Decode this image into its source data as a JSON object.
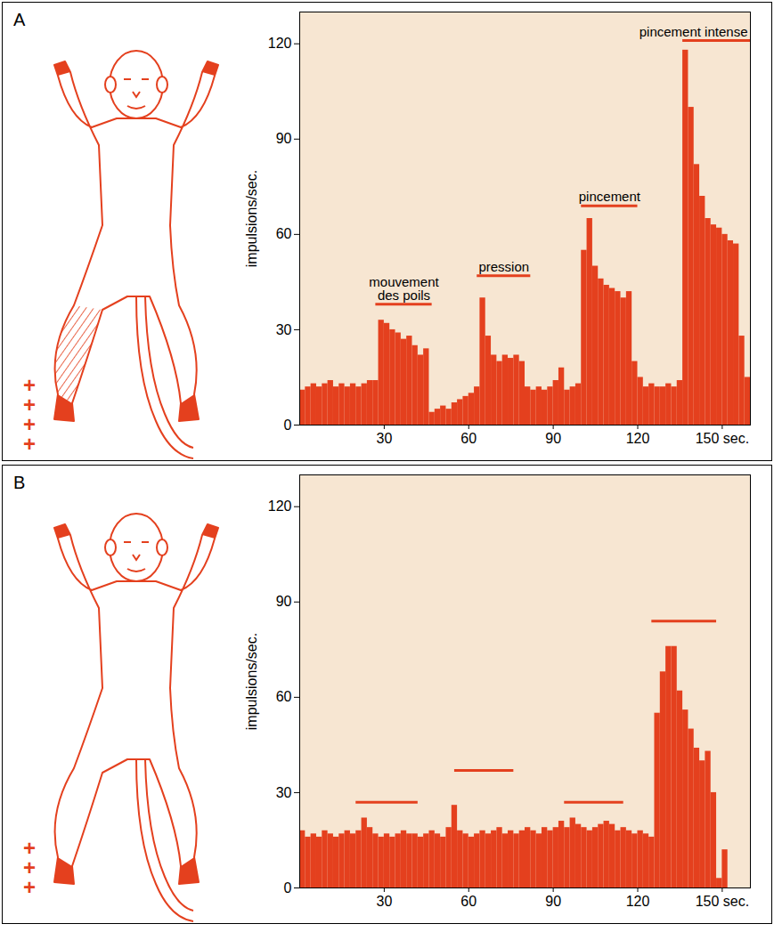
{
  "chart_data": [
    {
      "type": "histogram",
      "title": "A",
      "y_label": "impulsions/sec.",
      "color": "#e4401e",
      "annotations": [
        "+",
        "+",
        "+",
        "+"
      ],
      "xlim": [
        0,
        160
      ],
      "ylim": [
        0,
        130
      ],
      "xticks": [
        30,
        60,
        90,
        120,
        {
          "value": 150,
          "label": "150 sec."
        }
      ],
      "yticks": [
        0,
        30,
        60,
        90,
        120
      ],
      "bins": [
        0,
        2,
        4,
        6,
        8,
        10,
        12,
        14,
        16,
        18,
        20,
        22,
        24,
        26,
        28,
        30,
        32,
        34,
        36,
        38,
        40,
        42,
        44,
        46,
        48,
        50,
        52,
        54,
        56,
        58,
        60,
        62,
        64,
        66,
        68,
        70,
        72,
        74,
        76,
        78,
        80,
        82,
        84,
        86,
        88,
        90,
        92,
        94,
        96,
        98,
        100,
        102,
        104,
        106,
        108,
        110,
        112,
        114,
        116,
        118,
        120,
        122,
        124,
        126,
        128,
        130,
        132,
        134,
        136,
        138,
        140,
        142,
        144,
        146,
        148,
        150,
        152,
        154,
        156,
        158,
        160
      ],
      "values": [
        11,
        12,
        13,
        12,
        13,
        14,
        12,
        13,
        12,
        13,
        12,
        13,
        14,
        14,
        33,
        32,
        30,
        29,
        27,
        28,
        25,
        22,
        24,
        4,
        5,
        6,
        5,
        7,
        8,
        9,
        10,
        12,
        40,
        28,
        22,
        20,
        22,
        21,
        22,
        20,
        12,
        11,
        12,
        11,
        12,
        14,
        18,
        11,
        12,
        13,
        55,
        65,
        50,
        46,
        44,
        43,
        42,
        40,
        42,
        20,
        15,
        12,
        13,
        12,
        12,
        13,
        12,
        14,
        118,
        100,
        82,
        72,
        65,
        63,
        62,
        60,
        58,
        57,
        28,
        15
      ],
      "stimuli": [
        {
          "label": "mouvement\ndes poils",
          "start": 27,
          "end": 47,
          "level": 38
        },
        {
          "label": "pression",
          "start": 63,
          "end": 82,
          "level": 47
        },
        {
          "label": "pincement",
          "start": 100,
          "end": 120,
          "level": 69
        },
        {
          "label": "pincement intense",
          "start": 136,
          "end": 160,
          "level": 121
        }
      ]
    },
    {
      "type": "histogram",
      "title": "B",
      "y_label": "impulsions/sec.",
      "color": "#e4401e",
      "annotations": [
        "+",
        "+",
        "+"
      ],
      "xlim": [
        0,
        160
      ],
      "ylim": [
        0,
        130
      ],
      "xticks": [
        30,
        60,
        90,
        120,
        {
          "value": 150,
          "label": "150 sec."
        }
      ],
      "yticks": [
        0,
        30,
        60,
        90,
        120
      ],
      "bins": [
        0,
        2,
        4,
        6,
        8,
        10,
        12,
        14,
        16,
        18,
        20,
        22,
        24,
        26,
        28,
        30,
        32,
        34,
        36,
        38,
        40,
        42,
        44,
        46,
        48,
        50,
        52,
        54,
        56,
        58,
        60,
        62,
        64,
        66,
        68,
        70,
        72,
        74,
        76,
        78,
        80,
        82,
        84,
        86,
        88,
        90,
        92,
        94,
        96,
        98,
        100,
        102,
        104,
        106,
        108,
        110,
        112,
        114,
        116,
        118,
        120,
        122,
        124,
        126,
        128,
        130,
        132,
        134,
        136,
        138,
        140,
        142,
        144,
        146,
        148,
        150,
        152
      ],
      "values": [
        18,
        16,
        17,
        16,
        18,
        17,
        16,
        17,
        18,
        17,
        18,
        22,
        19,
        17,
        16,
        17,
        16,
        17,
        18,
        17,
        17,
        16,
        17,
        18,
        17,
        16,
        19,
        26,
        18,
        17,
        16,
        17,
        18,
        17,
        18,
        19,
        17,
        18,
        17,
        18,
        19,
        18,
        17,
        19,
        18,
        19,
        21,
        19,
        22,
        20,
        19,
        18,
        19,
        20,
        21,
        20,
        18,
        19,
        18,
        17,
        18,
        17,
        16,
        55,
        68,
        76,
        76,
        62,
        56,
        50,
        44,
        40,
        43,
        30,
        3,
        12
      ],
      "stimuli": [
        {
          "start": 20,
          "end": 42,
          "level": 27
        },
        {
          "start": 55,
          "end": 76,
          "level": 37
        },
        {
          "start": 94,
          "end": 115,
          "level": 27
        },
        {
          "start": 125,
          "end": 148,
          "level": 84
        }
      ]
    }
  ]
}
